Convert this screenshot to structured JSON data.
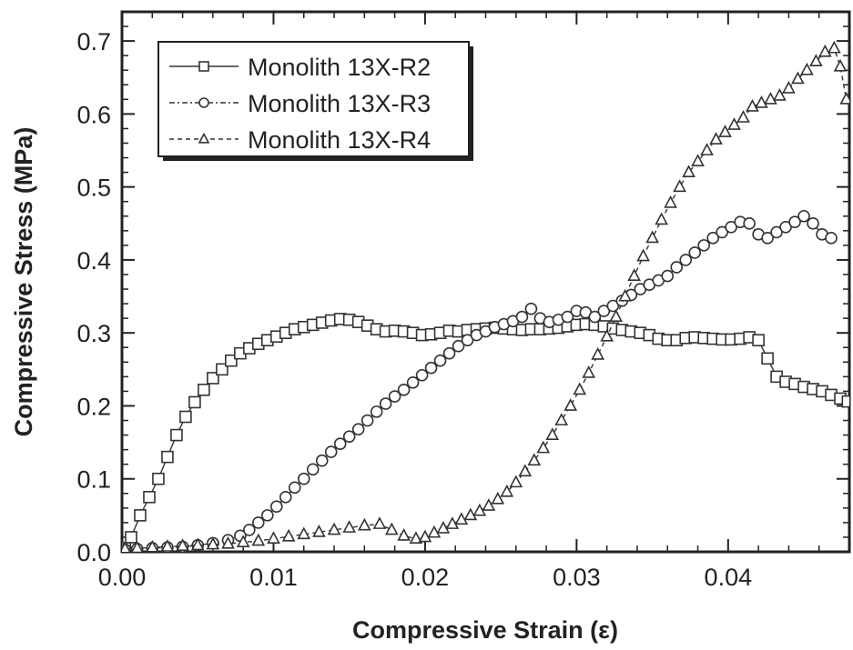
{
  "chart_data": {
    "type": "scatter",
    "title": "",
    "xlabel": "Compressive Strain (ε)",
    "ylabel": "Compressive Stress (MPa)",
    "xlim": [
      0,
      0.048
    ],
    "ylim": [
      0,
      0.74
    ],
    "xticks": [
      0.0,
      0.01,
      0.02,
      0.03,
      0.04
    ],
    "xtick_labels": [
      "0.00",
      "0.01",
      "0.02",
      "0.03",
      "0.04"
    ],
    "yticks": [
      0.0,
      0.1,
      0.2,
      0.3,
      0.4,
      0.5,
      0.6,
      0.7
    ],
    "ytick_labels": [
      "0.0",
      "0.1",
      "0.2",
      "0.3",
      "0.4",
      "0.5",
      "0.6",
      "0.7"
    ],
    "grid": false,
    "legend_position": "top-left",
    "series": [
      {
        "name": "Monolith 13X-R2",
        "marker": "square",
        "line_style": "solid",
        "color": "#333333",
        "points": [
          [
            0.0002,
            0.005
          ],
          [
            0.0006,
            0.02
          ],
          [
            0.0012,
            0.05
          ],
          [
            0.0018,
            0.075
          ],
          [
            0.0024,
            0.1
          ],
          [
            0.003,
            0.13
          ],
          [
            0.0036,
            0.16
          ],
          [
            0.0042,
            0.185
          ],
          [
            0.0048,
            0.205
          ],
          [
            0.0054,
            0.222
          ],
          [
            0.006,
            0.238
          ],
          [
            0.0066,
            0.25
          ],
          [
            0.0072,
            0.262
          ],
          [
            0.0078,
            0.272
          ],
          [
            0.0084,
            0.279
          ],
          [
            0.009,
            0.285
          ],
          [
            0.0096,
            0.29
          ],
          [
            0.0102,
            0.295
          ],
          [
            0.0108,
            0.3
          ],
          [
            0.0114,
            0.305
          ],
          [
            0.012,
            0.308
          ],
          [
            0.0126,
            0.311
          ],
          [
            0.0132,
            0.314
          ],
          [
            0.0138,
            0.317
          ],
          [
            0.0144,
            0.319
          ],
          [
            0.015,
            0.318
          ],
          [
            0.0156,
            0.315
          ],
          [
            0.0162,
            0.31
          ],
          [
            0.0168,
            0.305
          ],
          [
            0.0174,
            0.302
          ],
          [
            0.018,
            0.303
          ],
          [
            0.0186,
            0.302
          ],
          [
            0.0192,
            0.3
          ],
          [
            0.0198,
            0.297
          ],
          [
            0.0204,
            0.298
          ],
          [
            0.021,
            0.3
          ],
          [
            0.0216,
            0.303
          ],
          [
            0.0222,
            0.302
          ],
          [
            0.0228,
            0.304
          ],
          [
            0.0234,
            0.305
          ],
          [
            0.024,
            0.306
          ],
          [
            0.0246,
            0.307
          ],
          [
            0.0252,
            0.306
          ],
          [
            0.0258,
            0.305
          ],
          [
            0.0264,
            0.304
          ],
          [
            0.027,
            0.305
          ],
          [
            0.0276,
            0.305
          ],
          [
            0.0282,
            0.306
          ],
          [
            0.0288,
            0.307
          ],
          [
            0.0294,
            0.309
          ],
          [
            0.03,
            0.311
          ],
          [
            0.0306,
            0.312
          ],
          [
            0.0312,
            0.311
          ],
          [
            0.0318,
            0.309
          ],
          [
            0.0324,
            0.306
          ],
          [
            0.033,
            0.304
          ],
          [
            0.0336,
            0.302
          ],
          [
            0.0342,
            0.3
          ],
          [
            0.0348,
            0.297
          ],
          [
            0.0354,
            0.292
          ],
          [
            0.036,
            0.29
          ],
          [
            0.0366,
            0.29
          ],
          [
            0.0372,
            0.293
          ],
          [
            0.0378,
            0.294
          ],
          [
            0.0384,
            0.293
          ],
          [
            0.039,
            0.292
          ],
          [
            0.0396,
            0.291
          ],
          [
            0.0402,
            0.291
          ],
          [
            0.0408,
            0.292
          ],
          [
            0.0414,
            0.294
          ],
          [
            0.042,
            0.29
          ],
          [
            0.0426,
            0.265
          ],
          [
            0.0432,
            0.24
          ],
          [
            0.0438,
            0.233
          ],
          [
            0.0444,
            0.23
          ],
          [
            0.045,
            0.226
          ],
          [
            0.0456,
            0.223
          ],
          [
            0.0462,
            0.22
          ],
          [
            0.0468,
            0.215
          ],
          [
            0.0474,
            0.21
          ],
          [
            0.0479,
            0.206
          ]
        ]
      },
      {
        "name": "Monolith 13X-R3",
        "marker": "circle",
        "line_style": "dashdot",
        "color": "#333333",
        "points": [
          [
            0.0002,
            0.003
          ],
          [
            0.001,
            0.004
          ],
          [
            0.002,
            0.005
          ],
          [
            0.003,
            0.006
          ],
          [
            0.004,
            0.007
          ],
          [
            0.005,
            0.009
          ],
          [
            0.006,
            0.012
          ],
          [
            0.007,
            0.016
          ],
          [
            0.0078,
            0.022
          ],
          [
            0.0084,
            0.03
          ],
          [
            0.009,
            0.04
          ],
          [
            0.0096,
            0.05
          ],
          [
            0.0102,
            0.062
          ],
          [
            0.0108,
            0.075
          ],
          [
            0.0114,
            0.088
          ],
          [
            0.012,
            0.1
          ],
          [
            0.0126,
            0.113
          ],
          [
            0.0132,
            0.125
          ],
          [
            0.0138,
            0.137
          ],
          [
            0.0144,
            0.148
          ],
          [
            0.015,
            0.158
          ],
          [
            0.0156,
            0.168
          ],
          [
            0.0162,
            0.18
          ],
          [
            0.0168,
            0.192
          ],
          [
            0.0174,
            0.203
          ],
          [
            0.018,
            0.213
          ],
          [
            0.0186,
            0.222
          ],
          [
            0.0192,
            0.232
          ],
          [
            0.0198,
            0.242
          ],
          [
            0.0204,
            0.252
          ],
          [
            0.021,
            0.262
          ],
          [
            0.0216,
            0.272
          ],
          [
            0.0222,
            0.282
          ],
          [
            0.0228,
            0.29
          ],
          [
            0.0234,
            0.297
          ],
          [
            0.024,
            0.302
          ],
          [
            0.0246,
            0.308
          ],
          [
            0.0252,
            0.312
          ],
          [
            0.0258,
            0.316
          ],
          [
            0.0264,
            0.322
          ],
          [
            0.027,
            0.333
          ],
          [
            0.0276,
            0.32
          ],
          [
            0.0282,
            0.315
          ],
          [
            0.0288,
            0.318
          ],
          [
            0.0294,
            0.322
          ],
          [
            0.03,
            0.33
          ],
          [
            0.0306,
            0.328
          ],
          [
            0.0312,
            0.322
          ],
          [
            0.0318,
            0.33
          ],
          [
            0.0324,
            0.337
          ],
          [
            0.033,
            0.344
          ],
          [
            0.0336,
            0.352
          ],
          [
            0.0342,
            0.36
          ],
          [
            0.0348,
            0.366
          ],
          [
            0.0354,
            0.372
          ],
          [
            0.036,
            0.378
          ],
          [
            0.0366,
            0.39
          ],
          [
            0.0372,
            0.4
          ],
          [
            0.0378,
            0.41
          ],
          [
            0.0384,
            0.42
          ],
          [
            0.039,
            0.43
          ],
          [
            0.0396,
            0.438
          ],
          [
            0.0402,
            0.445
          ],
          [
            0.0408,
            0.452
          ],
          [
            0.0414,
            0.45
          ],
          [
            0.042,
            0.435
          ],
          [
            0.0426,
            0.43
          ],
          [
            0.0432,
            0.438
          ],
          [
            0.0438,
            0.445
          ],
          [
            0.0444,
            0.452
          ],
          [
            0.045,
            0.46
          ],
          [
            0.0456,
            0.45
          ],
          [
            0.0462,
            0.435
          ],
          [
            0.0468,
            0.43
          ]
        ]
      },
      {
        "name": "Monolith 13X-R4",
        "marker": "triangle",
        "line_style": "dashed",
        "color": "#333333",
        "points": [
          [
            0.0002,
            0.004
          ],
          [
            0.001,
            0.005
          ],
          [
            0.002,
            0.006
          ],
          [
            0.003,
            0.007
          ],
          [
            0.004,
            0.008
          ],
          [
            0.005,
            0.009
          ],
          [
            0.006,
            0.01
          ],
          [
            0.007,
            0.011
          ],
          [
            0.008,
            0.013
          ],
          [
            0.009,
            0.015
          ],
          [
            0.01,
            0.018
          ],
          [
            0.011,
            0.021
          ],
          [
            0.012,
            0.024
          ],
          [
            0.013,
            0.027
          ],
          [
            0.014,
            0.03
          ],
          [
            0.015,
            0.033
          ],
          [
            0.016,
            0.036
          ],
          [
            0.017,
            0.038
          ],
          [
            0.0178,
            0.03
          ],
          [
            0.0186,
            0.022
          ],
          [
            0.0194,
            0.018
          ],
          [
            0.02,
            0.02
          ],
          [
            0.0206,
            0.026
          ],
          [
            0.0212,
            0.032
          ],
          [
            0.0218,
            0.038
          ],
          [
            0.0224,
            0.044
          ],
          [
            0.023,
            0.05
          ],
          [
            0.0236,
            0.056
          ],
          [
            0.0242,
            0.063
          ],
          [
            0.0248,
            0.072
          ],
          [
            0.0254,
            0.082
          ],
          [
            0.026,
            0.095
          ],
          [
            0.0266,
            0.11
          ],
          [
            0.0272,
            0.125
          ],
          [
            0.0278,
            0.142
          ],
          [
            0.0284,
            0.16
          ],
          [
            0.029,
            0.18
          ],
          [
            0.0296,
            0.2
          ],
          [
            0.0302,
            0.222
          ],
          [
            0.0308,
            0.245
          ],
          [
            0.0314,
            0.27
          ],
          [
            0.032,
            0.295
          ],
          [
            0.0326,
            0.322
          ],
          [
            0.0332,
            0.35
          ],
          [
            0.0338,
            0.378
          ],
          [
            0.0344,
            0.405
          ],
          [
            0.035,
            0.43
          ],
          [
            0.0356,
            0.455
          ],
          [
            0.0362,
            0.478
          ],
          [
            0.0368,
            0.5
          ],
          [
            0.0374,
            0.52
          ],
          [
            0.038,
            0.535
          ],
          [
            0.0386,
            0.55
          ],
          [
            0.0392,
            0.565
          ],
          [
            0.0398,
            0.575
          ],
          [
            0.0404,
            0.585
          ],
          [
            0.041,
            0.595
          ],
          [
            0.0416,
            0.61
          ],
          [
            0.0422,
            0.615
          ],
          [
            0.0428,
            0.62
          ],
          [
            0.0434,
            0.625
          ],
          [
            0.044,
            0.635
          ],
          [
            0.0446,
            0.648
          ],
          [
            0.0452,
            0.66
          ],
          [
            0.0458,
            0.672
          ],
          [
            0.0464,
            0.685
          ],
          [
            0.047,
            0.69
          ],
          [
            0.0474,
            0.665
          ],
          [
            0.0478,
            0.62
          ]
        ]
      }
    ]
  }
}
